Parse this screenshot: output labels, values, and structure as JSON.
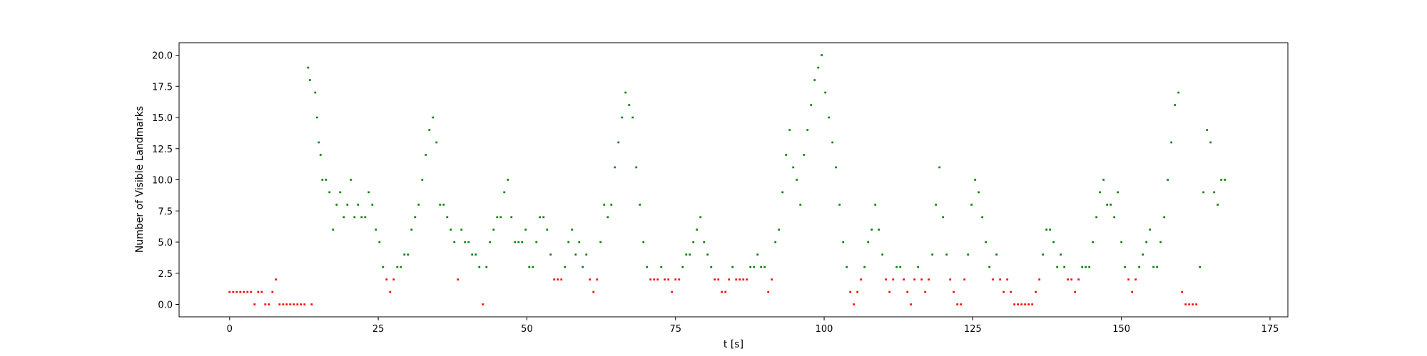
{
  "chart_data": {
    "type": "scatter",
    "title": "",
    "xlabel": "t [s]",
    "ylabel": "Number of Visible Landmarks",
    "xlim": [
      -8.5,
      178
    ],
    "ylim": [
      -1,
      21
    ],
    "xticks": [
      0,
      25,
      50,
      75,
      100,
      125,
      150,
      175
    ],
    "xtick_labels": [
      "0",
      "25",
      "50",
      "75",
      "100",
      "125",
      "150",
      "175"
    ],
    "yticks": [
      0,
      2.5,
      5,
      7.5,
      10,
      12.5,
      15,
      17.5,
      20
    ],
    "ytick_labels": [
      "0.0",
      "2.5",
      "5.0",
      "7.5",
      "10.0",
      "12.5",
      "15.0",
      "17.5",
      "20.0"
    ],
    "grid": false,
    "legend": "none",
    "threshold_rule": "count <= 2 shown red, count >= 3 shown green",
    "colors": {
      "low": "#ff0000",
      "high": "#008000"
    },
    "series": [
      {
        "values": [
          [
            0,
            1
          ],
          [
            0.6,
            1
          ],
          [
            1.2,
            1
          ],
          [
            1.8,
            1
          ],
          [
            2.4,
            1
          ],
          [
            3.0,
            1
          ],
          [
            3.6,
            1
          ],
          [
            4.2,
            0
          ],
          [
            4.8,
            1
          ],
          [
            5.4,
            1
          ],
          [
            6.0,
            0
          ],
          [
            6.6,
            0
          ],
          [
            7.2,
            1
          ],
          [
            7.8,
            2
          ],
          [
            8.4,
            0
          ],
          [
            9.0,
            0
          ],
          [
            9.6,
            0
          ],
          [
            10.2,
            0
          ],
          [
            10.8,
            0
          ],
          [
            11.4,
            0
          ],
          [
            12.0,
            0
          ],
          [
            12.6,
            0
          ],
          [
            13.2,
            19
          ],
          [
            13.5,
            18
          ],
          [
            13.8,
            0
          ],
          [
            14.4,
            17
          ],
          [
            14.7,
            15
          ],
          [
            15.0,
            13
          ],
          [
            15.3,
            12
          ],
          [
            15.6,
            10
          ],
          [
            16.2,
            10
          ],
          [
            16.8,
            9
          ],
          [
            17.4,
            6
          ],
          [
            18.0,
            8
          ],
          [
            18.6,
            9
          ],
          [
            19.2,
            7
          ],
          [
            19.8,
            8
          ],
          [
            20.4,
            10
          ],
          [
            21.0,
            7
          ],
          [
            21.6,
            8
          ],
          [
            22.2,
            7
          ],
          [
            22.8,
            7
          ],
          [
            23.4,
            9
          ],
          [
            24.0,
            8
          ],
          [
            24.6,
            6
          ],
          [
            25.2,
            5
          ],
          [
            25.8,
            3
          ],
          [
            26.4,
            2
          ],
          [
            27.0,
            1
          ],
          [
            27.6,
            2
          ],
          [
            28.2,
            3
          ],
          [
            28.8,
            3
          ],
          [
            29.4,
            4
          ],
          [
            30.0,
            4
          ],
          [
            30.6,
            6
          ],
          [
            31.2,
            7
          ],
          [
            31.8,
            8
          ],
          [
            32.4,
            10
          ],
          [
            33.0,
            12
          ],
          [
            33.6,
            14
          ],
          [
            34.2,
            15
          ],
          [
            34.8,
            13
          ],
          [
            35.4,
            8
          ],
          [
            36.0,
            8
          ],
          [
            36.6,
            7
          ],
          [
            37.2,
            6
          ],
          [
            37.8,
            5
          ],
          [
            38.4,
            2
          ],
          [
            39.0,
            6
          ],
          [
            39.6,
            5
          ],
          [
            40.2,
            5
          ],
          [
            40.8,
            4
          ],
          [
            41.4,
            4
          ],
          [
            42.0,
            3
          ],
          [
            42.6,
            0
          ],
          [
            43.2,
            3
          ],
          [
            43.8,
            5
          ],
          [
            44.4,
            6
          ],
          [
            45.0,
            7
          ],
          [
            45.6,
            7
          ],
          [
            46.2,
            9
          ],
          [
            46.8,
            10
          ],
          [
            47.4,
            7
          ],
          [
            48.0,
            5
          ],
          [
            48.6,
            5
          ],
          [
            49.2,
            5
          ],
          [
            49.8,
            6
          ],
          [
            50.4,
            3
          ],
          [
            51.0,
            3
          ],
          [
            51.6,
            5
          ],
          [
            52.2,
            7
          ],
          [
            52.8,
            7
          ],
          [
            53.4,
            6
          ],
          [
            54.0,
            4
          ],
          [
            54.6,
            2
          ],
          [
            55.2,
            2
          ],
          [
            55.8,
            2
          ],
          [
            56.4,
            3
          ],
          [
            57.0,
            5
          ],
          [
            57.6,
            6
          ],
          [
            58.2,
            4
          ],
          [
            58.8,
            5
          ],
          [
            59.4,
            3
          ],
          [
            60.0,
            4
          ],
          [
            60.6,
            2
          ],
          [
            61.2,
            1
          ],
          [
            61.8,
            2
          ],
          [
            62.4,
            5
          ],
          [
            63.0,
            8
          ],
          [
            63.6,
            7
          ],
          [
            64.2,
            8
          ],
          [
            64.8,
            11
          ],
          [
            65.4,
            13
          ],
          [
            66.0,
            15
          ],
          [
            66.6,
            17
          ],
          [
            67.2,
            16
          ],
          [
            67.8,
            15
          ],
          [
            68.4,
            11
          ],
          [
            69.0,
            8
          ],
          [
            69.6,
            5
          ],
          [
            70.2,
            3
          ],
          [
            70.8,
            2
          ],
          [
            71.4,
            2
          ],
          [
            72.0,
            2
          ],
          [
            72.6,
            3
          ],
          [
            73.2,
            2
          ],
          [
            73.8,
            2
          ],
          [
            74.4,
            1
          ],
          [
            75.0,
            2
          ],
          [
            75.6,
            2
          ],
          [
            76.2,
            3
          ],
          [
            76.8,
            4
          ],
          [
            77.4,
            4
          ],
          [
            78.0,
            5
          ],
          [
            78.6,
            6
          ],
          [
            79.2,
            7
          ],
          [
            79.8,
            5
          ],
          [
            80.4,
            4
          ],
          [
            81.0,
            3
          ],
          [
            81.6,
            2
          ],
          [
            82.2,
            2
          ],
          [
            82.8,
            1
          ],
          [
            83.4,
            1
          ],
          [
            84.0,
            2
          ],
          [
            84.6,
            3
          ],
          [
            85.2,
            2
          ],
          [
            85.8,
            2
          ],
          [
            86.4,
            2
          ],
          [
            87.0,
            2
          ],
          [
            87.6,
            3
          ],
          [
            88.2,
            3
          ],
          [
            88.8,
            4
          ],
          [
            89.4,
            3
          ],
          [
            90.0,
            3
          ],
          [
            90.6,
            1
          ],
          [
            91.2,
            2
          ],
          [
            91.8,
            5
          ],
          [
            92.4,
            6
          ],
          [
            93.0,
            9
          ],
          [
            93.6,
            12
          ],
          [
            94.2,
            14
          ],
          [
            94.8,
            11
          ],
          [
            95.4,
            10
          ],
          [
            96.0,
            8
          ],
          [
            96.6,
            12
          ],
          [
            97.2,
            14
          ],
          [
            97.8,
            16
          ],
          [
            98.4,
            18
          ],
          [
            99.0,
            19
          ],
          [
            99.6,
            20
          ],
          [
            100.2,
            17
          ],
          [
            100.8,
            15
          ],
          [
            101.4,
            13
          ],
          [
            102.0,
            11
          ],
          [
            102.6,
            8
          ],
          [
            103.2,
            5
          ],
          [
            103.8,
            3
          ],
          [
            104.4,
            1
          ],
          [
            105.0,
            0
          ],
          [
            105.6,
            1
          ],
          [
            106.2,
            2
          ],
          [
            106.8,
            3
          ],
          [
            107.4,
            5
          ],
          [
            108.0,
            6
          ],
          [
            108.6,
            8
          ],
          [
            109.2,
            6
          ],
          [
            109.8,
            4
          ],
          [
            110.4,
            2
          ],
          [
            111.0,
            1
          ],
          [
            111.6,
            2
          ],
          [
            112.2,
            3
          ],
          [
            112.8,
            3
          ],
          [
            113.4,
            2
          ],
          [
            114.0,
            1
          ],
          [
            114.6,
            0
          ],
          [
            115.2,
            2
          ],
          [
            115.8,
            3
          ],
          [
            116.4,
            2
          ],
          [
            117.0,
            1
          ],
          [
            117.6,
            2
          ],
          [
            118.2,
            4
          ],
          [
            118.8,
            8
          ],
          [
            119.4,
            11
          ],
          [
            120.0,
            7
          ],
          [
            120.6,
            4
          ],
          [
            121.2,
            2
          ],
          [
            121.8,
            1
          ],
          [
            122.4,
            0
          ],
          [
            123.0,
            0
          ],
          [
            123.6,
            2
          ],
          [
            124.2,
            4
          ],
          [
            124.8,
            8
          ],
          [
            125.4,
            10
          ],
          [
            126.0,
            9
          ],
          [
            126.6,
            7
          ],
          [
            127.2,
            5
          ],
          [
            127.8,
            3
          ],
          [
            128.4,
            2
          ],
          [
            129.0,
            4
          ],
          [
            129.6,
            2
          ],
          [
            130.2,
            1
          ],
          [
            130.8,
            2
          ],
          [
            131.4,
            1
          ],
          [
            132.0,
            0
          ],
          [
            132.6,
            0
          ],
          [
            133.2,
            0
          ],
          [
            133.8,
            0
          ],
          [
            134.4,
            0
          ],
          [
            135.0,
            0
          ],
          [
            135.6,
            1
          ],
          [
            136.2,
            2
          ],
          [
            136.8,
            4
          ],
          [
            137.4,
            6
          ],
          [
            138.0,
            6
          ],
          [
            138.6,
            5
          ],
          [
            139.2,
            3
          ],
          [
            139.8,
            4
          ],
          [
            140.4,
            3
          ],
          [
            141.0,
            2
          ],
          [
            141.6,
            2
          ],
          [
            142.2,
            1
          ],
          [
            142.8,
            2
          ],
          [
            143.4,
            3
          ],
          [
            144.0,
            3
          ],
          [
            144.6,
            3
          ],
          [
            145.2,
            5
          ],
          [
            145.8,
            7
          ],
          [
            146.4,
            9
          ],
          [
            147.0,
            10
          ],
          [
            147.6,
            8
          ],
          [
            148.2,
            8
          ],
          [
            148.8,
            7
          ],
          [
            149.4,
            9
          ],
          [
            150.0,
            5
          ],
          [
            150.6,
            3
          ],
          [
            151.2,
            2
          ],
          [
            151.8,
            1
          ],
          [
            152.4,
            2
          ],
          [
            153.0,
            3
          ],
          [
            153.6,
            4
          ],
          [
            154.2,
            5
          ],
          [
            154.8,
            6
          ],
          [
            155.4,
            3
          ],
          [
            156.0,
            3
          ],
          [
            156.6,
            5
          ],
          [
            157.2,
            7
          ],
          [
            157.8,
            10
          ],
          [
            158.4,
            13
          ],
          [
            159.0,
            16
          ],
          [
            159.6,
            17
          ],
          [
            160.2,
            1
          ],
          [
            160.8,
            0
          ],
          [
            161.4,
            0
          ],
          [
            162.0,
            0
          ],
          [
            162.6,
            0
          ],
          [
            163.2,
            3
          ],
          [
            163.8,
            9
          ],
          [
            164.4,
            14
          ],
          [
            165.0,
            13
          ],
          [
            165.6,
            9
          ],
          [
            166.2,
            8
          ],
          [
            166.8,
            10
          ],
          [
            167.4,
            10
          ]
        ]
      }
    ]
  }
}
